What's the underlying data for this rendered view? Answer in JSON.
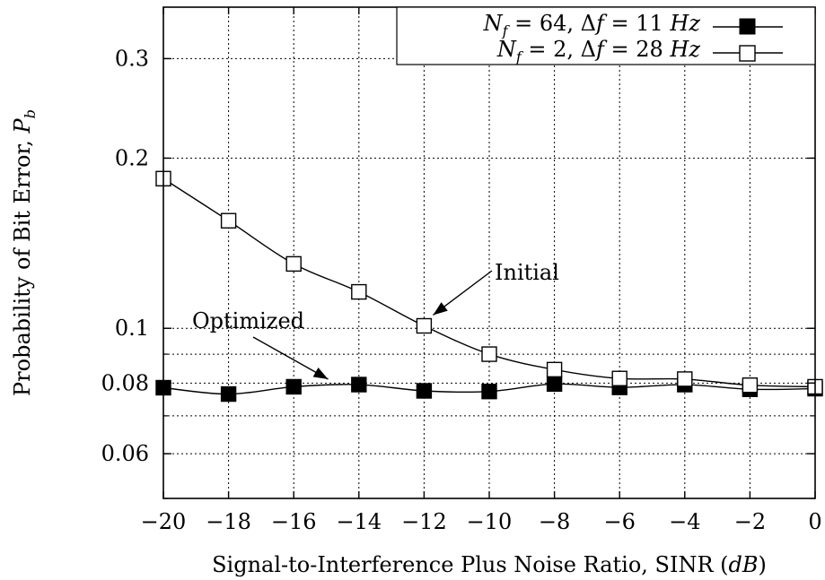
{
  "chart_data": {
    "type": "line",
    "xlabel": "Signal-to-Interference Plus Noise Ratio, SINR (dB)",
    "ylabel": "Probability of Bit Error, P_b",
    "x_ticks": [
      -20,
      -18,
      -16,
      -14,
      -12,
      -10,
      -8,
      -6,
      -4,
      -2,
      0
    ],
    "x_tick_labels": [
      "−20",
      "−18",
      "−16",
      "−14",
      "−12",
      "−10",
      "−8",
      "−6",
      "−4",
      "−2",
      "0"
    ],
    "y_ticks": [
      0.06,
      0.08,
      0.1,
      0.2,
      0.3
    ],
    "y_tick_labels": [
      "0.06",
      "0.08",
      "0.1",
      "0.2",
      "0.3"
    ],
    "xlim": [
      -20,
      0
    ],
    "ylim": [
      0.05,
      0.37
    ],
    "yscale": "log",
    "grid": true,
    "legend_position": "top-right",
    "x": [
      -20,
      -18,
      -16,
      -14,
      -12,
      -10,
      -8,
      -6,
      -4,
      -2,
      0
    ],
    "series": [
      {
        "name": "N_f = 64, Δf = 11 Hz",
        "marker": "filled-square",
        "values": [
          0.0785,
          0.0765,
          0.0788,
          0.0795,
          0.0775,
          0.0773,
          0.0797,
          0.0786,
          0.0795,
          0.078,
          0.0782
        ]
      },
      {
        "name": "N_f = 2, Δf = 28 Hz",
        "marker": "open-square",
        "values": [
          0.184,
          0.155,
          0.13,
          0.116,
          0.101,
          0.09,
          0.0845,
          0.0815,
          0.0813,
          0.0793,
          0.0788
        ]
      }
    ],
    "annotations": [
      {
        "text": "Initial",
        "target_x": -12,
        "target_y": 0.101
      },
      {
        "text": "Optimized",
        "target_x": -15,
        "target_y": 0.0795
      }
    ],
    "legend": {
      "entry_1": {
        "lhs_sub": "f",
        "eq1": " = 64, Δ",
        "eq2": " = 11 ",
        "unit": "Hz"
      },
      "entry_2": {
        "lhs_sub": "f",
        "eq1": " = 2, Δ",
        "eq2": " = 28 ",
        "unit": "Hz"
      }
    },
    "labels": {
      "xlabel_main": "Signal-to-Interference Plus Noise Ratio, SINR (",
      "xlabel_unit": "dB",
      "xlabel_close": ")",
      "ylabel_main": "Probability of Bit Error, ",
      "ylabel_var": "P",
      "ylabel_sub": "b"
    },
    "colors": {
      "line": "#000000",
      "background": "#ffffff"
    }
  }
}
